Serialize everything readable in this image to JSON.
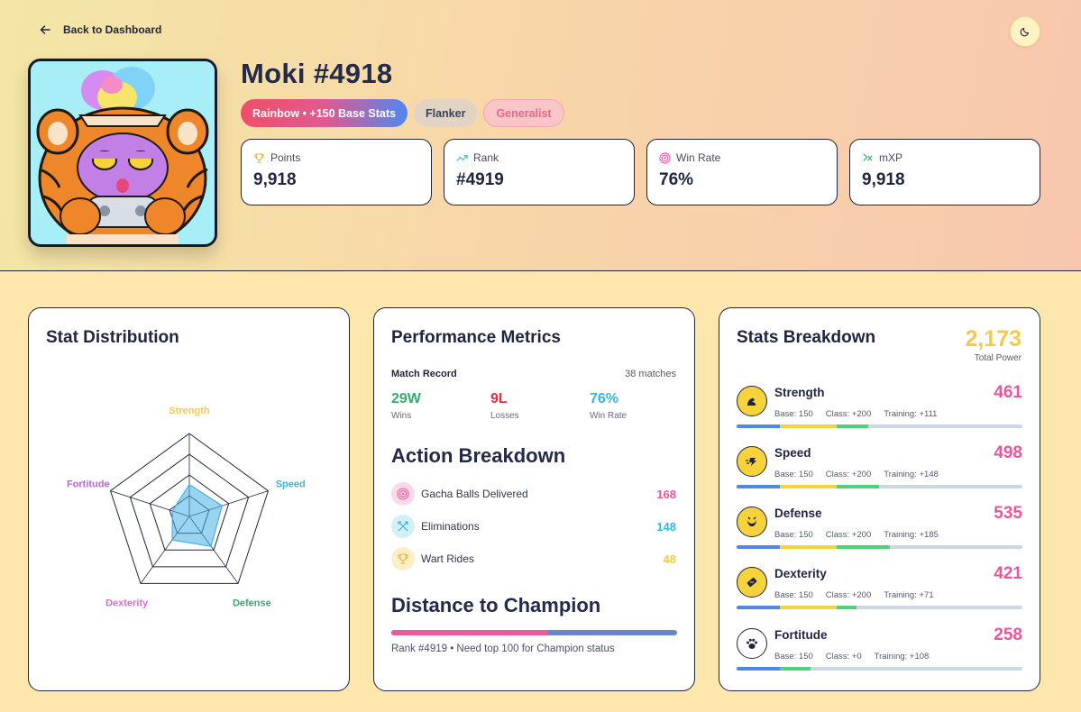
{
  "nav": {
    "back_label": "Back to Dashboard"
  },
  "moki": {
    "name": "Moki #4918",
    "tags": [
      "Rainbow • +150 Base Stats",
      "Flanker",
      "Generalist"
    ]
  },
  "summary": [
    {
      "label": "Points",
      "value": "9,918",
      "icon": "trophy-icon"
    },
    {
      "label": "Rank",
      "value": "#4919",
      "icon": "trend-up-icon"
    },
    {
      "label": "Win Rate",
      "value": "76%",
      "icon": "target-icon"
    },
    {
      "label": "mXP",
      "value": "9,918",
      "icon": "xp-icon"
    }
  ],
  "stat_distribution": {
    "title": "Stat Distribution",
    "axes": [
      "Strength",
      "Speed",
      "Defense",
      "Dexterity",
      "Fortitude"
    ],
    "values": [
      461,
      498,
      535,
      421,
      258
    ],
    "max": 1200,
    "colors": {
      "Strength": "#f4c94d",
      "Speed": "#3bb5d8",
      "Defense": "#2fae6e",
      "Dexterity": "#e069e0",
      "Fortitude": "#b565e6"
    }
  },
  "performance": {
    "title": "Performance Metrics",
    "match_record_label": "Match Record",
    "matches": "38 matches",
    "wins": "29W",
    "wins_label": "Wins",
    "losses": "9L",
    "losses_label": "Losses",
    "win_rate": "76%",
    "win_rate_label": "Win Rate",
    "action_title": "Action Breakdown",
    "actions": [
      {
        "label": "Gacha Balls Delivered",
        "value": "168",
        "color": "#e8579a",
        "icon": "target-icon"
      },
      {
        "label": "Eliminations",
        "value": "148",
        "color": "#3bb5d8",
        "icon": "swords-icon"
      },
      {
        "label": "Wart Rides",
        "value": "48",
        "color": "#f4c94d",
        "icon": "trophy-icon"
      }
    ],
    "champion_title": "Distance to Champion",
    "champion_progress": 0.55,
    "champion_note": "Rank #4919 • Need top 100 for Champion status"
  },
  "stats_breakdown": {
    "title": "Stats Breakdown",
    "total": "2,173",
    "total_label": "Total Power",
    "stats": [
      {
        "name": "Strength",
        "value": "461",
        "base": "Base: 150",
        "cls": "Class: +200",
        "training": "Training: +111",
        "b": 150,
        "c": 200,
        "t": 111,
        "icon": "strength-icon"
      },
      {
        "name": "Speed",
        "value": "498",
        "base": "Base: 150",
        "cls": "Class: +200",
        "training": "Training: +148",
        "b": 150,
        "c": 200,
        "t": 148,
        "icon": "speed-icon"
      },
      {
        "name": "Defense",
        "value": "535",
        "base": "Base: 150",
        "cls": "Class: +200",
        "training": "Training: +185",
        "b": 150,
        "c": 200,
        "t": 185,
        "icon": "defense-icon"
      },
      {
        "name": "Dexterity",
        "value": "421",
        "base": "Base: 150",
        "cls": "Class: +200",
        "training": "Training: +71",
        "b": 150,
        "c": 200,
        "t": 71,
        "icon": "dexterity-icon"
      },
      {
        "name": "Fortitude",
        "value": "258",
        "base": "Base: 150",
        "cls": "Class: +0",
        "training": "Training: +108",
        "b": 150,
        "c": 0,
        "t": 108,
        "icon": "paw-icon"
      }
    ],
    "bar_max": 1000
  }
}
